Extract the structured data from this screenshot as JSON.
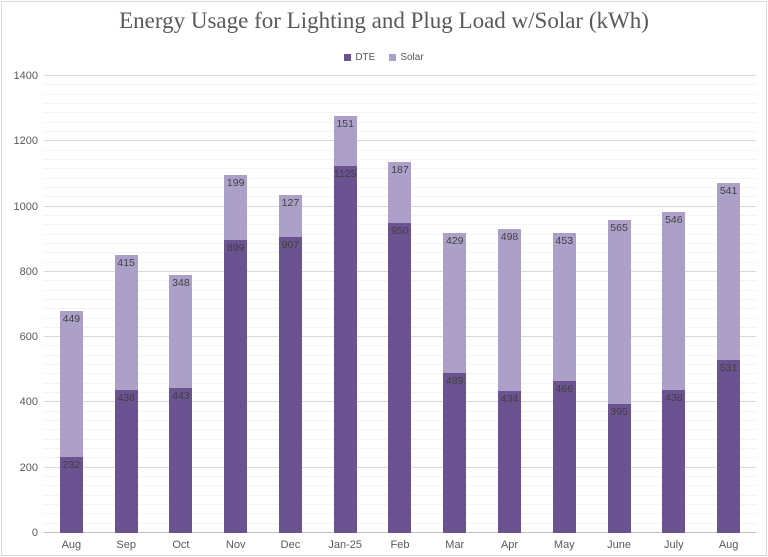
{
  "title": "Energy Usage for Lighting and Plug Load w/Solar (kWh)",
  "legend": [
    {
      "label": "DTE",
      "color": "#6b5391"
    },
    {
      "label": "Solar",
      "color": "#ada0c8"
    }
  ],
  "colors": {
    "dte": "#6b5391",
    "solar": "#ada0c8",
    "title_text": "#595959",
    "axis_text": "#595959",
    "bar_label_text": "#404040",
    "major_gridline": "#d9d9d9",
    "minor_gridline": "#f4f3f5",
    "axis_line": "#bfbfbf",
    "chart_border": "#d9d9d9"
  },
  "chart_data": {
    "type": "bar",
    "stacked": true,
    "title": "Energy Usage for Lighting and Plug Load w/Solar (kWh)",
    "xlabel": "",
    "ylabel": "",
    "categories": [
      "Aug",
      "Sep",
      "Oct",
      "Nov",
      "Dec",
      "Jan-25",
      "Feb",
      "Mar",
      "Apr",
      "May",
      "June",
      "July",
      "Aug"
    ],
    "series": [
      {
        "name": "DTE",
        "color": "#6b5391",
        "values": [
          232,
          438,
          443,
          899,
          907,
          1125,
          950,
          489,
          434,
          466,
          395,
          438,
          531
        ]
      },
      {
        "name": "Solar",
        "color": "#ada0c8",
        "values": [
          449,
          415,
          348,
          199,
          127,
          151,
          187,
          429,
          498,
          453,
          565,
          546,
          541
        ]
      }
    ],
    "totals": [
      681,
      853,
      791,
      1098,
      1034,
      1276,
      1137,
      918,
      932,
      919,
      960,
      984,
      1072
    ],
    "ylim": [
      0,
      1400
    ],
    "y_major_unit": 200,
    "y_minor_divisions_per_major": 7,
    "y_tick_labels": [
      "0",
      "200",
      "400",
      "600",
      "800",
      "1000",
      "1200",
      "1400"
    ],
    "grid": "on",
    "legend_position": "top-center",
    "data_labels": "inside-end"
  }
}
